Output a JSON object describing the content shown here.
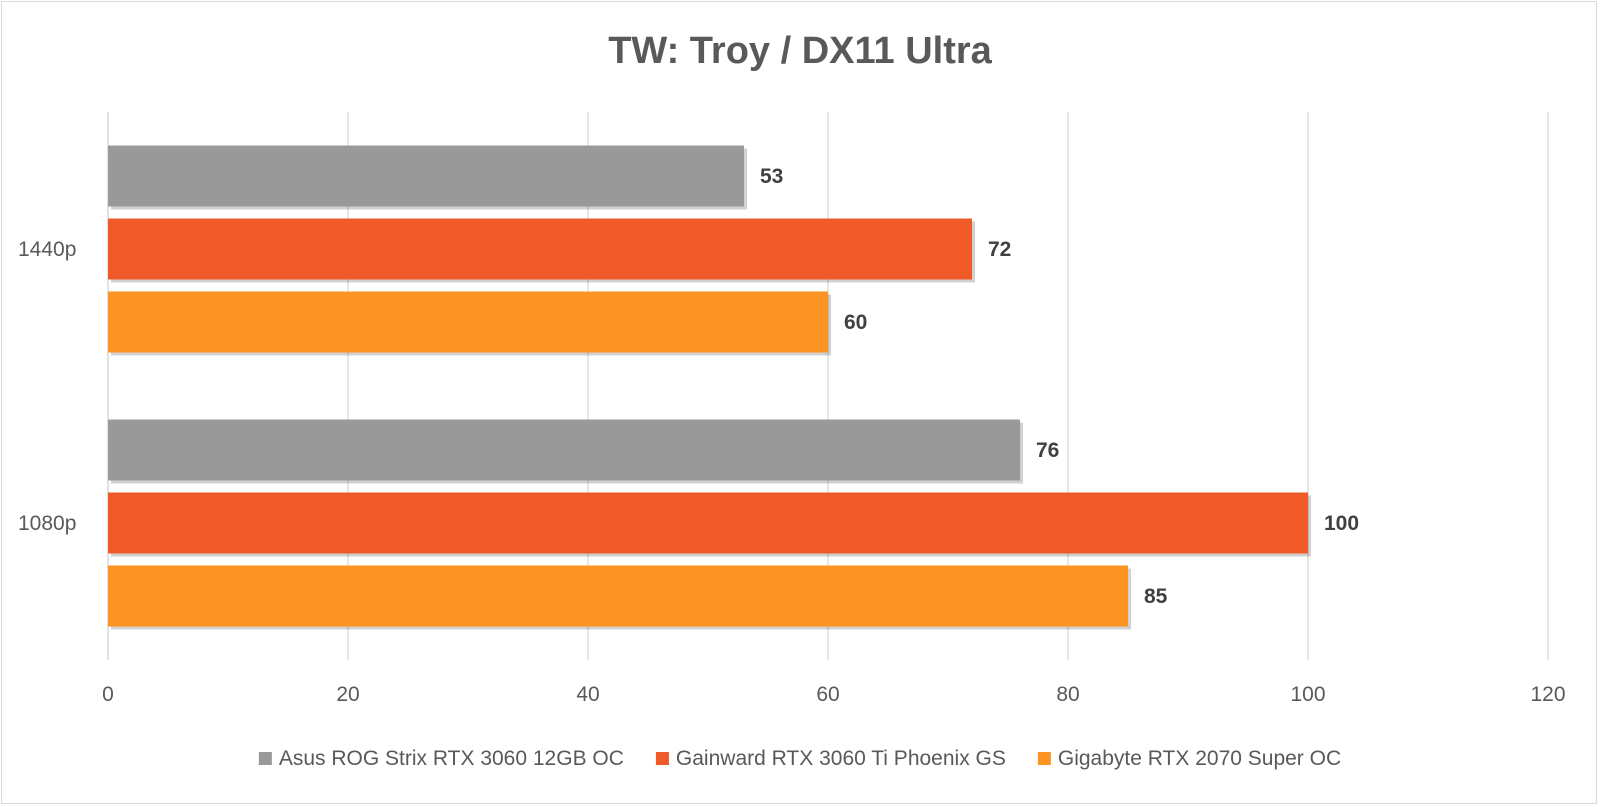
{
  "chart_data": {
    "type": "bar",
    "orientation": "horizontal",
    "title": "TW: Troy / DX11 Ultra",
    "categories": [
      "1440p",
      "1080p"
    ],
    "series": [
      {
        "name": "Asus ROG Strix RTX 3060 12GB OC",
        "color": "#999999",
        "values": [
          53,
          76
        ]
      },
      {
        "name": "Gainward RTX 3060 Ti Phoenix GS",
        "color": "#f05a28",
        "values": [
          72,
          100
        ]
      },
      {
        "name": "Gigabyte RTX 2070 Super OC",
        "color": "#fc9322",
        "values": [
          60,
          85
        ]
      }
    ],
    "xlim": [
      0,
      120
    ],
    "xticks": [
      "0",
      "20",
      "40",
      "60",
      "80",
      "100",
      "120"
    ],
    "grid": true,
    "legend_position": "bottom",
    "data_labels": true
  }
}
